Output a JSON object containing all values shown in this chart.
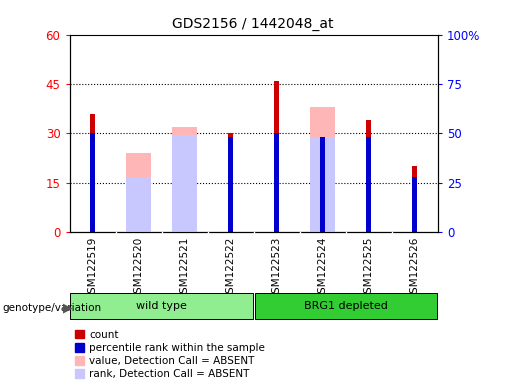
{
  "title": "GDS2156 / 1442048_at",
  "samples": [
    "GSM122519",
    "GSM122520",
    "GSM122521",
    "GSM122522",
    "GSM122523",
    "GSM122524",
    "GSM122525",
    "GSM122526"
  ],
  "count_values": [
    36,
    0,
    0,
    30,
    46,
    0,
    34,
    20
  ],
  "percentile_rank": [
    50,
    0,
    0,
    48,
    50,
    48,
    48,
    28
  ],
  "absent_value": [
    0,
    24,
    32,
    0,
    0,
    38,
    0,
    0
  ],
  "absent_rank": [
    0,
    28,
    49,
    0,
    0,
    48,
    0,
    0
  ],
  "groups": [
    {
      "label": "wild type",
      "start": 0,
      "end": 4,
      "color": "#90EE90"
    },
    {
      "label": "BRG1 depleted",
      "start": 4,
      "end": 8,
      "color": "#32CD32"
    }
  ],
  "ylim_left": [
    0,
    60
  ],
  "ylim_right": [
    0,
    100
  ],
  "yticks_left": [
    0,
    15,
    30,
    45,
    60
  ],
  "ytick_labels_left": [
    "0",
    "15",
    "30",
    "45",
    "60"
  ],
  "yticks_right": [
    0,
    25,
    50,
    75,
    100
  ],
  "ytick_labels_right": [
    "0",
    "25",
    "50",
    "75",
    "100%"
  ],
  "count_color": "#cc0000",
  "percentile_color": "#0000cc",
  "absent_value_color": "#ffb6b6",
  "absent_rank_color": "#c8c8ff",
  "xtick_bg_color": "#d0d0d0",
  "legend_items": [
    {
      "label": "count",
      "color": "#cc0000"
    },
    {
      "label": "percentile rank within the sample",
      "color": "#0000cc"
    },
    {
      "label": "value, Detection Call = ABSENT",
      "color": "#ffb6b6"
    },
    {
      "label": "rank, Detection Call = ABSENT",
      "color": "#c8c8ff"
    }
  ],
  "group_label_text": "genotype/variation"
}
